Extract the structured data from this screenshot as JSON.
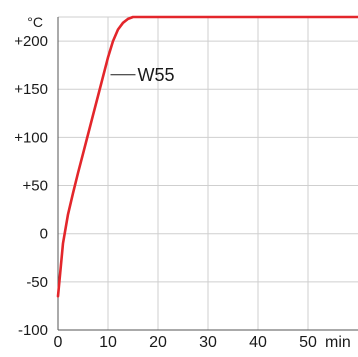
{
  "chart_data": {
    "type": "line",
    "x_unit": "min",
    "y_unit": "°C",
    "xlim": [
      0,
      60
    ],
    "ylim": [
      -100,
      225
    ],
    "x_ticks": [
      0,
      10,
      20,
      30,
      40,
      50
    ],
    "y_ticks": [
      -100,
      -50,
      0,
      50,
      100,
      150,
      200
    ],
    "x_tick_labels": [
      "0",
      "10",
      "20",
      "30",
      "40",
      "50"
    ],
    "y_tick_labels": [
      "-100",
      "-50",
      "0",
      "+50",
      "+100",
      "+150",
      "+200"
    ],
    "grid": true,
    "series": [
      {
        "name": "W55",
        "color": "#e3262b",
        "x": [
          0,
          1,
          2,
          3,
          4,
          5,
          6,
          7,
          8,
          9,
          10,
          11,
          12,
          13,
          14,
          15,
          16,
          20,
          30,
          40,
          50,
          60
        ],
        "y": [
          -65,
          -10,
          20,
          42,
          63,
          83,
          103,
          123,
          143,
          163,
          183,
          200,
          212,
          219,
          223,
          225,
          225,
          225,
          225,
          225,
          225,
          225
        ]
      }
    ],
    "annotation": {
      "text": "W55",
      "x": 10.5,
      "y": 165
    }
  }
}
